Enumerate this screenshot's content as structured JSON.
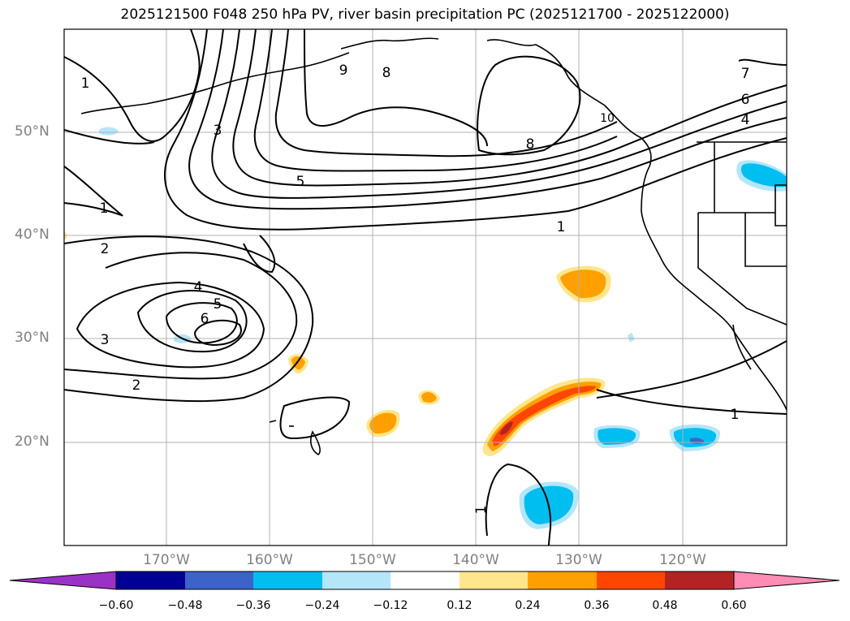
{
  "title": "2025121500 F048 250 hPa PV, river basin precipitation PC (2025121700 - 2025122000)",
  "latitude_labels": [
    "50°N",
    "40°N",
    "30°N",
    "20°N"
  ],
  "longitude_labels": [
    "170°W",
    "160°W",
    "150°W",
    "140°W",
    "130°W",
    "120°W"
  ],
  "contour_labels": [
    "1",
    "3",
    "9",
    "8",
    "5",
    "8",
    "6",
    "4",
    "7",
    "1",
    "2",
    "4",
    "5",
    "6",
    "3",
    "2",
    "1",
    "1",
    "10"
  ],
  "colorbar": {
    "ticks": [
      "−0.60",
      "−0.48",
      "−0.36",
      "−0.24",
      "−0.12",
      "0.12",
      "0.24",
      "0.36",
      "0.48",
      "0.60"
    ],
    "colors": [
      "#9b32c8",
      "#000096",
      "#3c64c8",
      "#00bef0",
      "#b4e6fa",
      "#ffffff",
      "#ffe68c",
      "#ffa000",
      "#ff4600",
      "#b42323",
      "#ff8cb4"
    ]
  },
  "colors": {
    "gridline": "#b0b0b0",
    "coast": "#000000",
    "axis_label": "#808080"
  }
}
